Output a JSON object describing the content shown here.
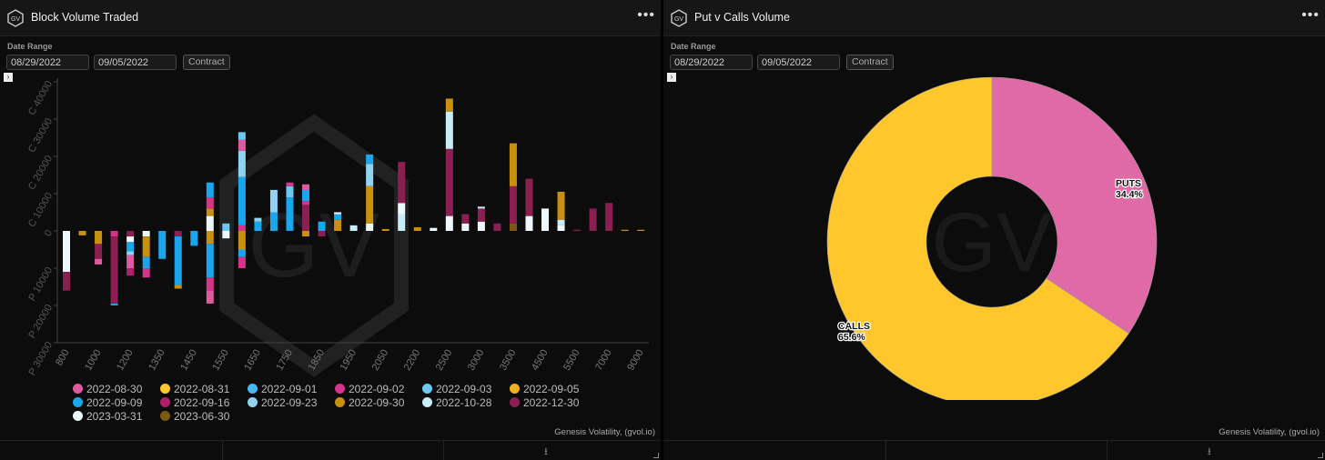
{
  "left_panel": {
    "title": "Block Volume Traded",
    "logo_text": "GV",
    "menu_icon": "more-horizontal-icon",
    "date_range_label": "Date Range",
    "start_date": "08/29/2022",
    "end_date": "09/05/2022",
    "contract_label": "Contract",
    "watermark": "GV",
    "credit": "Genesis Volatility, (gvol.io)"
  },
  "right_panel": {
    "title": "Put v Calls Volume",
    "logo_text": "GV",
    "menu_icon": "more-horizontal-icon",
    "date_range_label": "Date Range",
    "start_date": "08/29/2022",
    "end_date": "09/05/2022",
    "contract_label": "Contract",
    "watermark": "GV",
    "credit": "Genesis Volatility, (gvol.io)"
  },
  "chart_data": [
    {
      "type": "bar",
      "stacked": true,
      "title": "Block Volume Traded",
      "y_ticks": [
        "C 40000",
        "C 30000",
        "C 20000",
        "C 10000",
        "0",
        "P 10000",
        "P 20000",
        "P 30000"
      ],
      "ylim": [
        -30000,
        40000
      ],
      "x_tick_labels": [
        "800",
        "1000",
        "1200",
        "1350",
        "1450",
        "1550",
        "1650",
        "1750",
        "1850",
        "1950",
        "2050",
        "2200",
        "2500",
        "3000",
        "3500",
        "4500",
        "5500",
        "7000",
        "9000"
      ],
      "categories": [
        "800",
        "900",
        "1000",
        "1100",
        "1200",
        "1300",
        "1350",
        "1400",
        "1450",
        "1500",
        "1550",
        "1600",
        "1650",
        "1700",
        "1750",
        "1800",
        "1850",
        "1900",
        "1950",
        "2000",
        "2050",
        "2100",
        "2200",
        "2300",
        "2500",
        "2600",
        "3000",
        "3200",
        "3500",
        "4000",
        "4500",
        "5000",
        "5500",
        "6000",
        "7000",
        "8000",
        "9000"
      ],
      "legend_position": "bottom",
      "series": [
        {
          "name": "2022-08-30",
          "color": "#e05aa0"
        },
        {
          "name": "2022-08-31",
          "color": "#ffc72c"
        },
        {
          "name": "2022-09-01",
          "color": "#4ab8f0"
        },
        {
          "name": "2022-09-02",
          "color": "#d6338a"
        },
        {
          "name": "2022-09-03",
          "color": "#6cc8f2"
        },
        {
          "name": "2022-09-05",
          "color": "#f0b020"
        },
        {
          "name": "2022-09-09",
          "color": "#1aa6ec"
        },
        {
          "name": "2022-09-16",
          "color": "#b0206a"
        },
        {
          "name": "2022-09-23",
          "color": "#8fd3f0"
        },
        {
          "name": "2022-09-30",
          "color": "#c8900f"
        },
        {
          "name": "2022-10-28",
          "color": "#c8ecf8"
        },
        {
          "name": "2022-12-30",
          "color": "#8a1f52"
        },
        {
          "name": "2023-03-31",
          "color": "#eef8fc"
        },
        {
          "name": "2023-06-30",
          "color": "#7a5a10"
        }
      ],
      "bars": [
        {
          "x": "800",
          "segments": [
            {
              "s": 12,
              "v": -11000
            },
            {
              "s": 11,
              "v": -5000
            }
          ]
        },
        {
          "x": "900",
          "segments": [
            {
              "s": 9,
              "v": -1200
            }
          ]
        },
        {
          "x": "1000",
          "segments": [
            {
              "s": 9,
              "v": -3500
            },
            {
              "s": 11,
              "v": -4000
            },
            {
              "s": 0,
              "v": -1500
            }
          ]
        },
        {
          "x": "1100",
          "segments": [
            {
              "s": 3,
              "v": -1500
            },
            {
              "s": 11,
              "v": -18000
            },
            {
              "s": 6,
              "v": -500
            }
          ]
        },
        {
          "x": "1200",
          "segments": [
            {
              "s": 11,
              "v": -1500
            },
            {
              "s": 12,
              "v": -1500
            },
            {
              "s": 6,
              "v": -2500
            },
            {
              "s": 8,
              "v": -1000
            },
            {
              "s": 0,
              "v": -3500
            },
            {
              "s": 7,
              "v": -2000
            }
          ]
        },
        {
          "x": "1300",
          "segments": [
            {
              "s": 12,
              "v": -1500
            },
            {
              "s": 9,
              "v": -5500
            },
            {
              "s": 6,
              "v": -3000
            },
            {
              "s": 3,
              "v": -2500
            }
          ]
        },
        {
          "x": "1350",
          "segments": [
            {
              "s": 6,
              "v": -7500
            }
          ]
        },
        {
          "x": "1400",
          "segments": [
            {
              "s": 11,
              "v": -1500
            },
            {
              "s": 6,
              "v": -13000
            },
            {
              "s": 9,
              "v": -1000
            }
          ]
        },
        {
          "x": "1450",
          "segments": [
            {
              "s": 6,
              "v": -4000
            }
          ]
        },
        {
          "x": "1500",
          "segments": [
            {
              "s": 12,
              "v": 4000
            },
            {
              "s": 9,
              "v": 2000
            },
            {
              "s": 3,
              "v": 3000
            },
            {
              "s": 6,
              "v": 4000
            }
          ]
        },
        {
          "x": "1500",
          "neg": true,
          "segments": [
            {
              "s": 9,
              "v": -3500
            },
            {
              "s": 6,
              "v": -9000
            },
            {
              "s": 3,
              "v": -3500
            },
            {
              "s": 0,
              "v": -3500
            }
          ]
        },
        {
          "x": "1550",
          "segments": [
            {
              "s": 4,
              "v": 2000
            }
          ]
        },
        {
          "x": "1550",
          "neg": true,
          "segments": [
            {
              "s": 12,
              "v": -2000
            }
          ]
        },
        {
          "x": "1600",
          "segments": [
            {
              "s": 3,
              "v": 1500
            },
            {
              "s": 6,
              "v": 13000
            },
            {
              "s": 8,
              "v": 7000
            },
            {
              "s": 0,
              "v": 3000
            },
            {
              "s": 4,
              "v": 2000
            }
          ]
        },
        {
          "x": "1600",
          "neg": true,
          "segments": [
            {
              "s": 9,
              "v": -5000
            },
            {
              "s": 6,
              "v": -2000
            },
            {
              "s": 3,
              "v": -3000
            }
          ]
        },
        {
          "x": "1650",
          "segments": [
            {
              "s": 6,
              "v": 2500
            },
            {
              "s": 8,
              "v": 1000
            }
          ]
        },
        {
          "x": "1700",
          "segments": [
            {
              "s": 6,
              "v": 5000
            },
            {
              "s": 8,
              "v": 6000
            }
          ]
        },
        {
          "x": "1750",
          "segments": [
            {
              "s": 6,
              "v": 9000
            },
            {
              "s": 4,
              "v": 3000
            },
            {
              "s": 3,
              "v": 1000
            }
          ]
        },
        {
          "x": "1800",
          "segments": [
            {
              "s": 11,
              "v": 7000
            },
            {
              "s": 3,
              "v": 1000
            },
            {
              "s": 6,
              "v": 3000
            },
            {
              "s": 0,
              "v": 1500
            }
          ]
        },
        {
          "x": "1800",
          "neg": true,
          "segments": [
            {
              "s": 9,
              "v": -1500
            }
          ]
        },
        {
          "x": "1850",
          "segments": [
            {
              "s": 6,
              "v": 2500
            }
          ]
        },
        {
          "x": "1850",
          "neg": true,
          "segments": [
            {
              "s": 11,
              "v": -1500
            }
          ]
        },
        {
          "x": "1900",
          "segments": [
            {
              "s": 9,
              "v": 3000
            },
            {
              "s": 6,
              "v": 1500
            },
            {
              "s": 12,
              "v": 500
            }
          ]
        },
        {
          "x": "1950",
          "segments": [
            {
              "s": 10,
              "v": 1500
            }
          ]
        },
        {
          "x": "2000",
          "segments": [
            {
              "s": 12,
              "v": 2000
            },
            {
              "s": 9,
              "v": 10000
            },
            {
              "s": 8,
              "v": 6000
            },
            {
              "s": 6,
              "v": 2500
            }
          ]
        },
        {
          "x": "2050",
          "segments": [
            {
              "s": 9,
              "v": 500
            }
          ]
        },
        {
          "x": "2100",
          "segments": [
            {
              "s": 10,
              "v": 4500
            },
            {
              "s": 12,
              "v": 3000
            },
            {
              "s": 11,
              "v": 11000
            }
          ]
        },
        {
          "x": "2200",
          "segments": [
            {
              "s": 9,
              "v": 1000
            }
          ]
        },
        {
          "x": "2300",
          "segments": [
            {
              "s": 12,
              "v": 800
            }
          ]
        },
        {
          "x": "2500",
          "segments": [
            {
              "s": 12,
              "v": 4000
            },
            {
              "s": 11,
              "v": 18000
            },
            {
              "s": 10,
              "v": 10000
            },
            {
              "s": 9,
              "v": 3500
            }
          ]
        },
        {
          "x": "2600",
          "segments": [
            {
              "s": 12,
              "v": 2000
            },
            {
              "s": 11,
              "v": 2500
            }
          ]
        },
        {
          "x": "3000",
          "segments": [
            {
              "s": 12,
              "v": 2500
            },
            {
              "s": 11,
              "v": 3500
            },
            {
              "s": 10,
              "v": 500
            }
          ]
        },
        {
          "x": "3200",
          "segments": [
            {
              "s": 11,
              "v": 2000
            }
          ]
        },
        {
          "x": "3500",
          "segments": [
            {
              "s": 13,
              "v": 2000
            },
            {
              "s": 11,
              "v": 10000
            },
            {
              "s": 9,
              "v": 11500
            }
          ]
        },
        {
          "x": "4000",
          "segments": [
            {
              "s": 12,
              "v": 4000
            },
            {
              "s": 11,
              "v": 10000
            }
          ]
        },
        {
          "x": "4500",
          "segments": [
            {
              "s": 12,
              "v": 6000
            }
          ]
        },
        {
          "x": "5000",
          "segments": [
            {
              "s": 12,
              "v": 1500
            },
            {
              "s": 10,
              "v": 1500
            },
            {
              "s": 9,
              "v": 7500
            }
          ]
        },
        {
          "x": "5500",
          "segments": [
            {
              "s": 11,
              "v": 300
            }
          ]
        },
        {
          "x": "6000",
          "segments": [
            {
              "s": 11,
              "v": 6000
            }
          ]
        },
        {
          "x": "7000",
          "segments": [
            {
              "s": 11,
              "v": 7500
            }
          ]
        },
        {
          "x": "8000",
          "segments": [
            {
              "s": 9,
              "v": 300
            }
          ]
        },
        {
          "x": "9000",
          "segments": [
            {
              "s": 9,
              "v": 300
            }
          ]
        }
      ]
    },
    {
      "type": "pie",
      "donut": true,
      "title": "Put v Calls Volume",
      "slices": [
        {
          "label": "PUTS",
          "value": 34.4,
          "display": "34.4%",
          "color": "#e06aa6"
        },
        {
          "label": "CALLS",
          "value": 65.6,
          "display": "65.6%",
          "color": "#ffc72c"
        }
      ]
    }
  ]
}
